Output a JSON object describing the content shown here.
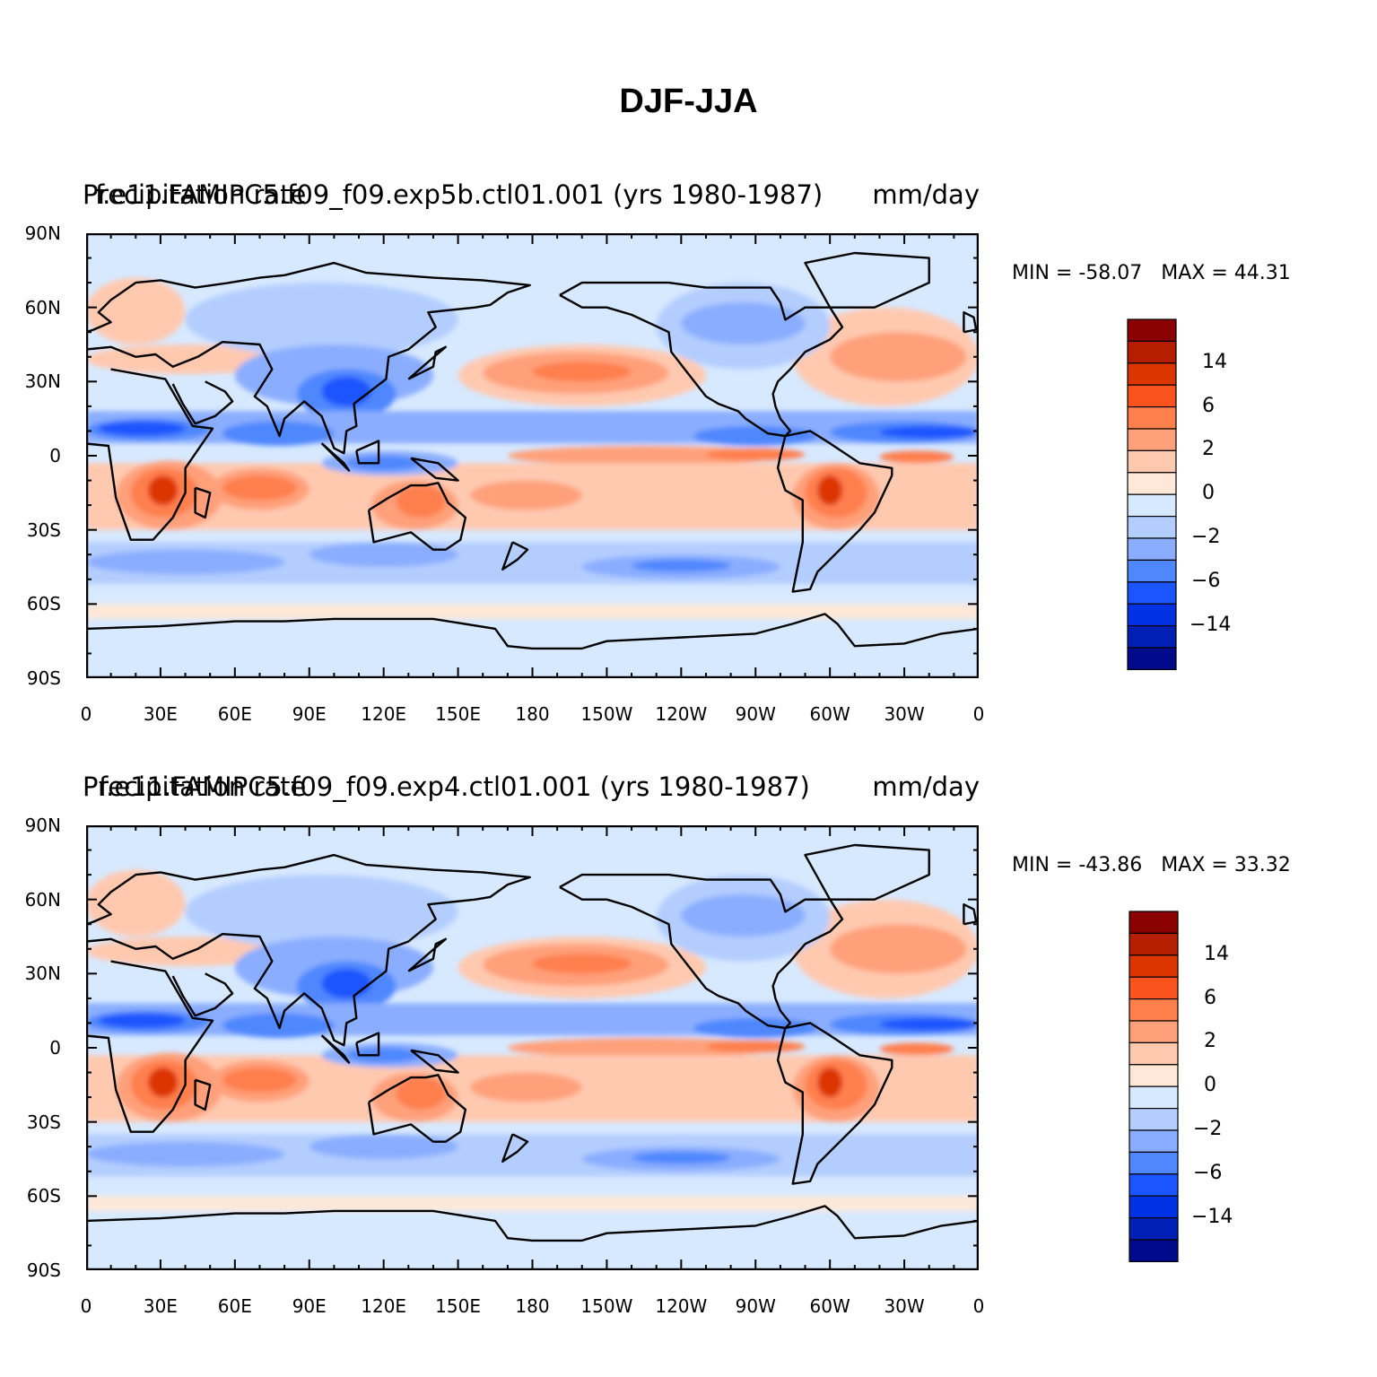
{
  "title": "DJF-JJA",
  "panels": [
    {
      "left_label": "Precipitation rate",
      "center_label": "f.e11.FAMIPC5.f09_f09.exp5b.ctl01.001 (yrs 1980-1987)",
      "right_label": "mm/day",
      "min_label": "MIN = -58.07",
      "max_label": "MAX =  44.31",
      "min_value": -58.07,
      "max_value": 44.31
    },
    {
      "left_label": "Precipitation rate",
      "center_label": "f.e11.FAMIPC5.f09_f09.exp4.ctl01.001 (yrs 1980-1987)",
      "right_label": "mm/day",
      "min_label": "MIN = -43.86",
      "max_label": "MAX =  33.32",
      "min_value": -43.86,
      "max_value": 33.32
    }
  ],
  "lat_ticks": [
    "90N",
    "60N",
    "30N",
    "0",
    "30S",
    "60S",
    "90S"
  ],
  "lon_ticks": [
    "0",
    "30E",
    "60E",
    "90E",
    "120E",
    "150E",
    "180",
    "150W",
    "120W",
    "90W",
    "60W",
    "30W",
    "0"
  ],
  "colorbar": {
    "colors": [
      "#8b0000",
      "#b51e00",
      "#dc3600",
      "#f8531d",
      "#ff7f4d",
      "#ffa07a",
      "#ffc9b0",
      "#ffe8d8",
      "#d7e9ff",
      "#b3cdff",
      "#8aadff",
      "#4f87ff",
      "#1b55ff",
      "#0031e2",
      "#001fb4",
      "#000a8a"
    ],
    "labels": [
      "14",
      "6",
      "2",
      "0",
      "-2",
      "-6",
      "-14"
    ]
  },
  "colors": {
    "ocean_light_blue": "#d7e9ff",
    "coastline": "#000000"
  }
}
